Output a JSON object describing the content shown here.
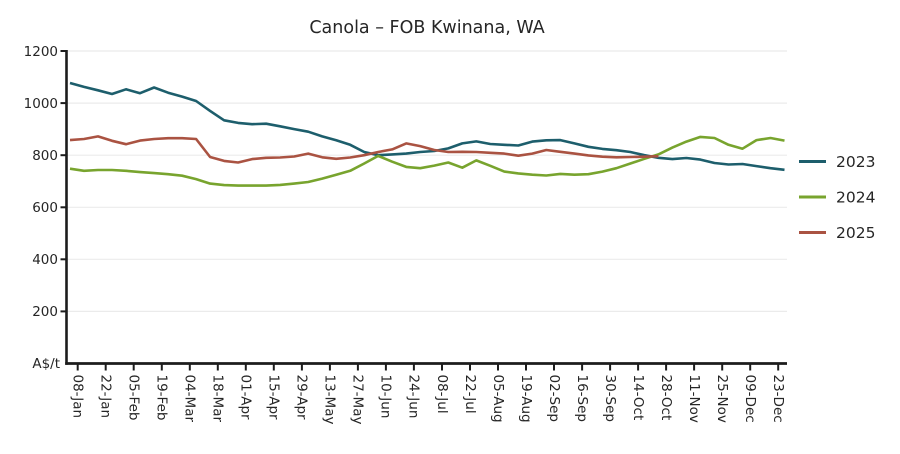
{
  "title": "Canola – FOB Kwinana, WA",
  "colors": {
    "series_2023": "#1d5e6c",
    "series_2024": "#78a42e",
    "series_2025": "#aa5342",
    "gridline": "#ebebeb",
    "axis": "#1c1c1c",
    "text": "#262626",
    "background": "#ffffff"
  },
  "legend": {
    "position": "right",
    "entries": [
      "2023",
      "2024",
      "2025"
    ]
  },
  "chart_data": {
    "type": "line",
    "title": "Canola – FOB Kwinana, WA",
    "xlabel": "",
    "ylabel": "A$/t",
    "ylim": [
      0,
      1200
    ],
    "yticks": [
      200,
      400,
      600,
      800,
      1000,
      1200
    ],
    "grid": "horizontal",
    "legend_position": "right-outside",
    "x_unit": "weekly points, one tick every 2 weeks",
    "x_tick_labels": [
      "08-Jan",
      "22-Jan",
      "05-Feb",
      "19-Feb",
      "04-Mar",
      "18-Mar",
      "01-Apr",
      "15-Apr",
      "29-Apr",
      "13-May",
      "27-May",
      "10-Jun",
      "24-Jun",
      "08-Jul",
      "22-Jul",
      "05-Aug",
      "19-Aug",
      "02-Sep",
      "16-Sep",
      "30-Sep",
      "14-Oct",
      "28-Oct",
      "11-Nov",
      "25-Nov",
      "09-Dec",
      "23-Dec"
    ],
    "x_tick_rotation": 90,
    "series": [
      {
        "name": "2023",
        "color": "#1d5e6c",
        "values": [
          1077,
          1062,
          1049,
          1035,
          1053,
          1038,
          1060,
          1040,
          1025,
          1008,
          970,
          934,
          924,
          919,
          921,
          911,
          900,
          890,
          872,
          857,
          840,
          812,
          800,
          803,
          806,
          812,
          816,
          826,
          845,
          853,
          843,
          840,
          837,
          852,
          857,
          858,
          845,
          832,
          824,
          819,
          812,
          800,
          790,
          785,
          789,
          783,
          770,
          764,
          766,
          758,
          750,
          744
        ]
      },
      {
        "name": "2024",
        "color": "#78a42e",
        "values": [
          748,
          740,
          743,
          743,
          740,
          735,
          731,
          727,
          721,
          708,
          691,
          685,
          683,
          683,
          683,
          686,
          691,
          697,
          710,
          725,
          740,
          768,
          797,
          775,
          755,
          750,
          760,
          772,
          752,
          780,
          759,
          737,
          730,
          725,
          722,
          728,
          725,
          727,
          737,
          750,
          768,
          786,
          803,
          829,
          852,
          870,
          866,
          840,
          825,
          858,
          866,
          856
        ]
      },
      {
        "name": "2025",
        "color": "#aa5342",
        "values": [
          858,
          862,
          872,
          855,
          842,
          856,
          862,
          865,
          865,
          862,
          793,
          778,
          772,
          785,
          790,
          791,
          795,
          806,
          792,
          786,
          791,
          800,
          812,
          822,
          845,
          835,
          820,
          812,
          813,
          812,
          809,
          806,
          798,
          806,
          820,
          813,
          806,
          799,
          794,
          792,
          793,
          794,
          796
        ]
      }
    ]
  }
}
